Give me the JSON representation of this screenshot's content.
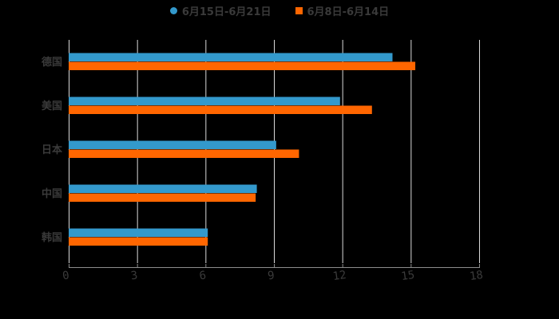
{
  "chart_data": {
    "type": "bar",
    "orientation": "horizontal",
    "title": "",
    "xlabel": "",
    "ylabel": "",
    "categories": [
      "德国",
      "美国",
      "日本",
      "中国",
      "韩国"
    ],
    "series": [
      {
        "name": "6月15日-6月21日",
        "color": "#3399CC",
        "values": [
          14.2,
          11.9,
          9.1,
          8.25,
          6.1
        ]
      },
      {
        "name": "6月8日-6月14日",
        "color": "#FF6600",
        "values": [
          15.2,
          13.3,
          10.1,
          8.2,
          6.1
        ]
      }
    ],
    "xlim": [
      0,
      18
    ],
    "xticks": [
      "0",
      "3",
      "6",
      "9",
      "12",
      "15",
      "18"
    ],
    "grid": true,
    "legend_position": "top"
  },
  "legend": {
    "items": [
      {
        "label": "6月15日-6月21日",
        "color": "#3399CC",
        "shape": "circle"
      },
      {
        "label": "6月8日-6月14日",
        "color": "#FF6600",
        "shape": "square"
      }
    ]
  },
  "colors": {
    "background": "#000000",
    "grid": "#d9d9d9",
    "text": "#3a3a3a"
  }
}
